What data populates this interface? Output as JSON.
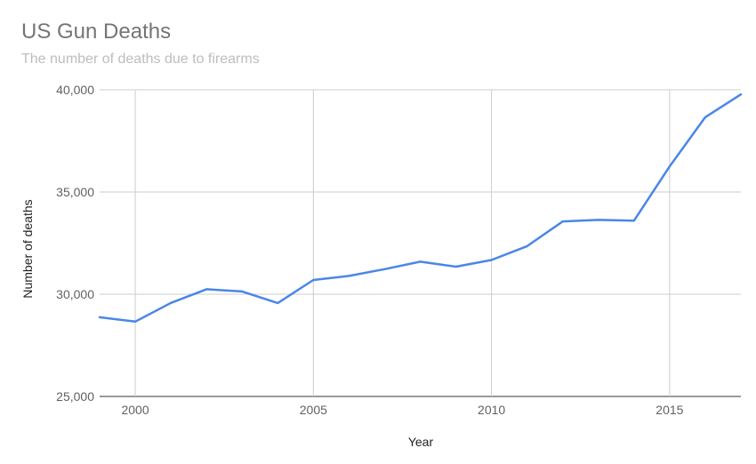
{
  "chart_data": {
    "type": "line",
    "title": "US Gun Deaths",
    "subtitle": "The number of deaths due to firearms",
    "xlabel": "Year",
    "ylabel": "Number of deaths",
    "xlim": [
      1999,
      2017
    ],
    "ylim": [
      25000,
      40000
    ],
    "x_ticks": [
      2000,
      2005,
      2010,
      2015
    ],
    "y_ticks": [
      25000,
      30000,
      35000,
      40000
    ],
    "x_tick_labels": [
      "2000",
      "2005",
      "2010",
      "2015"
    ],
    "y_tick_labels": [
      "25,000",
      "30,000",
      "35,000",
      "40,000"
    ],
    "grid": true,
    "series": [
      {
        "color": "#4a86e8",
        "x": [
          1999,
          2000,
          2001,
          2002,
          2003,
          2004,
          2005,
          2006,
          2007,
          2008,
          2009,
          2010,
          2011,
          2012,
          2013,
          2014,
          2015,
          2016,
          2017
        ],
        "values": [
          28874,
          28663,
          29573,
          30242,
          30136,
          29569,
          30694,
          30896,
          31224,
          31593,
          31347,
          31672,
          32351,
          33563,
          33636,
          33594,
          36252,
          38658,
          39773
        ]
      }
    ]
  }
}
